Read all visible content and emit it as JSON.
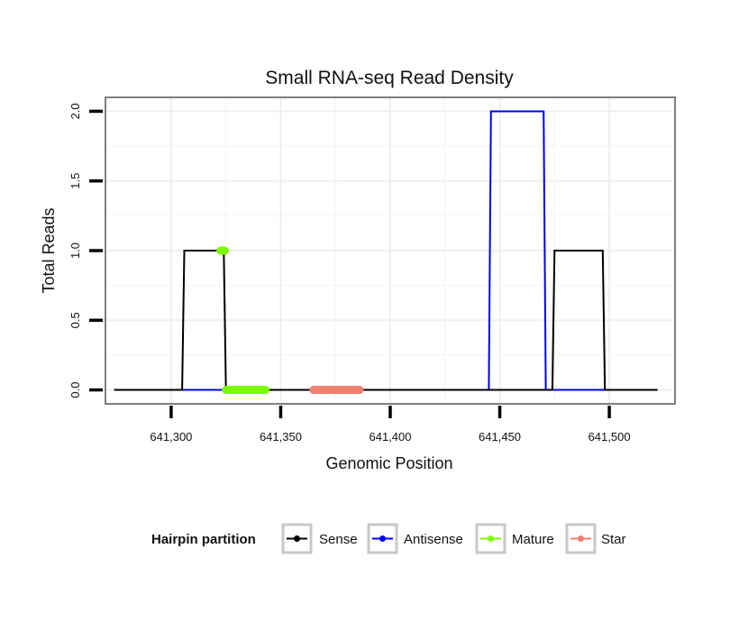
{
  "chart_data": {
    "type": "line",
    "title": "Small RNA-seq Read Density",
    "xlabel": "Genomic Position",
    "ylabel": "Total Reads",
    "xlim": [
      641270,
      641530
    ],
    "ylim": [
      -0.1,
      2.1
    ],
    "xticks": [
      {
        "value": 641300,
        "label": "641,300"
      },
      {
        "value": 641350,
        "label": "641,350"
      },
      {
        "value": 641400,
        "label": "641,400"
      },
      {
        "value": 641450,
        "label": "641,450"
      },
      {
        "value": 641500,
        "label": "641,500"
      }
    ],
    "yticks": [
      {
        "value": 0.0,
        "label": "0.0"
      },
      {
        "value": 0.5,
        "label": "0.5"
      },
      {
        "value": 1.0,
        "label": "1.0"
      },
      {
        "value": 1.5,
        "label": "1.5"
      },
      {
        "value": 2.0,
        "label": "2.0"
      }
    ],
    "x_minor": [
      641325,
      641375,
      641425,
      641475
    ],
    "y_minor": [
      0.25,
      0.75,
      1.25,
      1.75
    ],
    "grid": true,
    "series": [
      {
        "name": "Antisense",
        "color": "#0000ff",
        "x": [
          641274,
          641445,
          641446,
          641470,
          641471,
          641522
        ],
        "y": [
          0,
          0,
          2,
          2,
          0,
          0
        ]
      },
      {
        "name": "Sense",
        "color": "#000000",
        "x": [
          641274,
          641305,
          641306,
          641324,
          641325,
          641474,
          641475,
          641497,
          641498,
          641522
        ],
        "y": [
          0,
          0,
          1,
          1,
          0,
          0,
          1,
          1,
          0,
          0
        ]
      },
      {
        "name": "Mature",
        "color": "#7cfc00",
        "thick": true,
        "segments": [
          {
            "x": [
              641322.5,
              641324.5
            ],
            "y": [
              1,
              1
            ]
          },
          {
            "x": [
              641325,
              641343
            ],
            "y": [
              0,
              0
            ]
          }
        ]
      },
      {
        "name": "Star",
        "color": "#f08070",
        "thick": true,
        "segments": [
          {
            "x": [
              641365,
              641386
            ],
            "y": [
              0,
              0
            ]
          }
        ]
      }
    ],
    "legend": {
      "title": "Hairpin partition",
      "position": "bottom",
      "entries": [
        {
          "name": "Sense",
          "color": "#000000"
        },
        {
          "name": "Antisense",
          "color": "#0000ff"
        },
        {
          "name": "Mature",
          "color": "#7cfc00"
        },
        {
          "name": "Star",
          "color": "#f08070"
        }
      ]
    }
  }
}
